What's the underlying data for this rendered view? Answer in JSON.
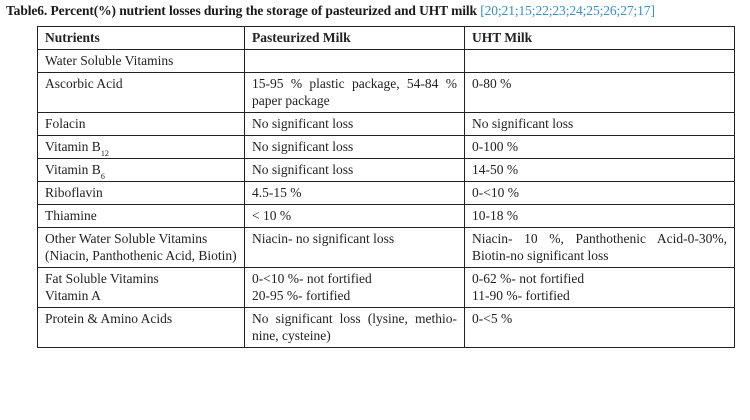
{
  "caption": {
    "label": "Table6.",
    "title": "Percent(%) nutrient losses during the storage  of pasteurized and UHT milk",
    "refs": "[20;21;15;22;23;24;25;26;27;17]"
  },
  "headers": [
    "Nutrients",
    "Pasteurized Milk",
    "UHT  Milk"
  ],
  "rows": {
    "water_soluble": {
      "nutrient": "Water Soluble Vitamins",
      "pasteurized": "",
      "uht": ""
    },
    "ascorbic": {
      "nutrient": "Ascorbic Acid",
      "pasteurized": "15-95  % plastic package,     54-84 % paper package",
      "uht": "0-80 %"
    },
    "folacin": {
      "nutrient": "Folacin",
      "pasteurized": "No significant loss",
      "uht": "No significant loss"
    },
    "b12": {
      "nutrient": "Vitamin B",
      "sub": "12",
      "pasteurized": "No significant loss",
      "uht": "0-100 %"
    },
    "b6": {
      "nutrient": "Vitamin B",
      "sub": "6",
      "pasteurized": "No significant  loss",
      "uht": "14-50 %"
    },
    "riboflavin": {
      "nutrient": "Riboflavin",
      "pasteurized": "4.5-15 %",
      "uht": "0-<10 %"
    },
    "thiamine": {
      "nutrient": "Thiamine",
      "pasteurized": "< 10 %",
      "uht": "10-18 %"
    },
    "other_ws": {
      "nutrient": "Other Water Soluble Vitamins (Niacin, Panthothenic Acid, Biotin)",
      "pasteurized": "Niacin- no significant loss",
      "uht": "Niacin- 10 %,                Panthothenic Acid-0-30%,  Biotin-no significant loss"
    },
    "fat_soluble": {
      "nutrient_line1": "Fat Soluble Vitamins",
      "nutrient_line2": "Vitamin A",
      "pasteurized_line1": "0-<10 %- not fortified",
      "pasteurized_line2": "20-95 %- fortified",
      "uht_line1": "0-62 %- not fortified",
      "uht_line2": "11-90 %- fortified"
    },
    "protein": {
      "nutrient": "Protein & Amino Acids",
      "pasteurized": "No significant loss  (lysine, methio-nine, cysteine)",
      "uht": "0-<5 %"
    }
  }
}
